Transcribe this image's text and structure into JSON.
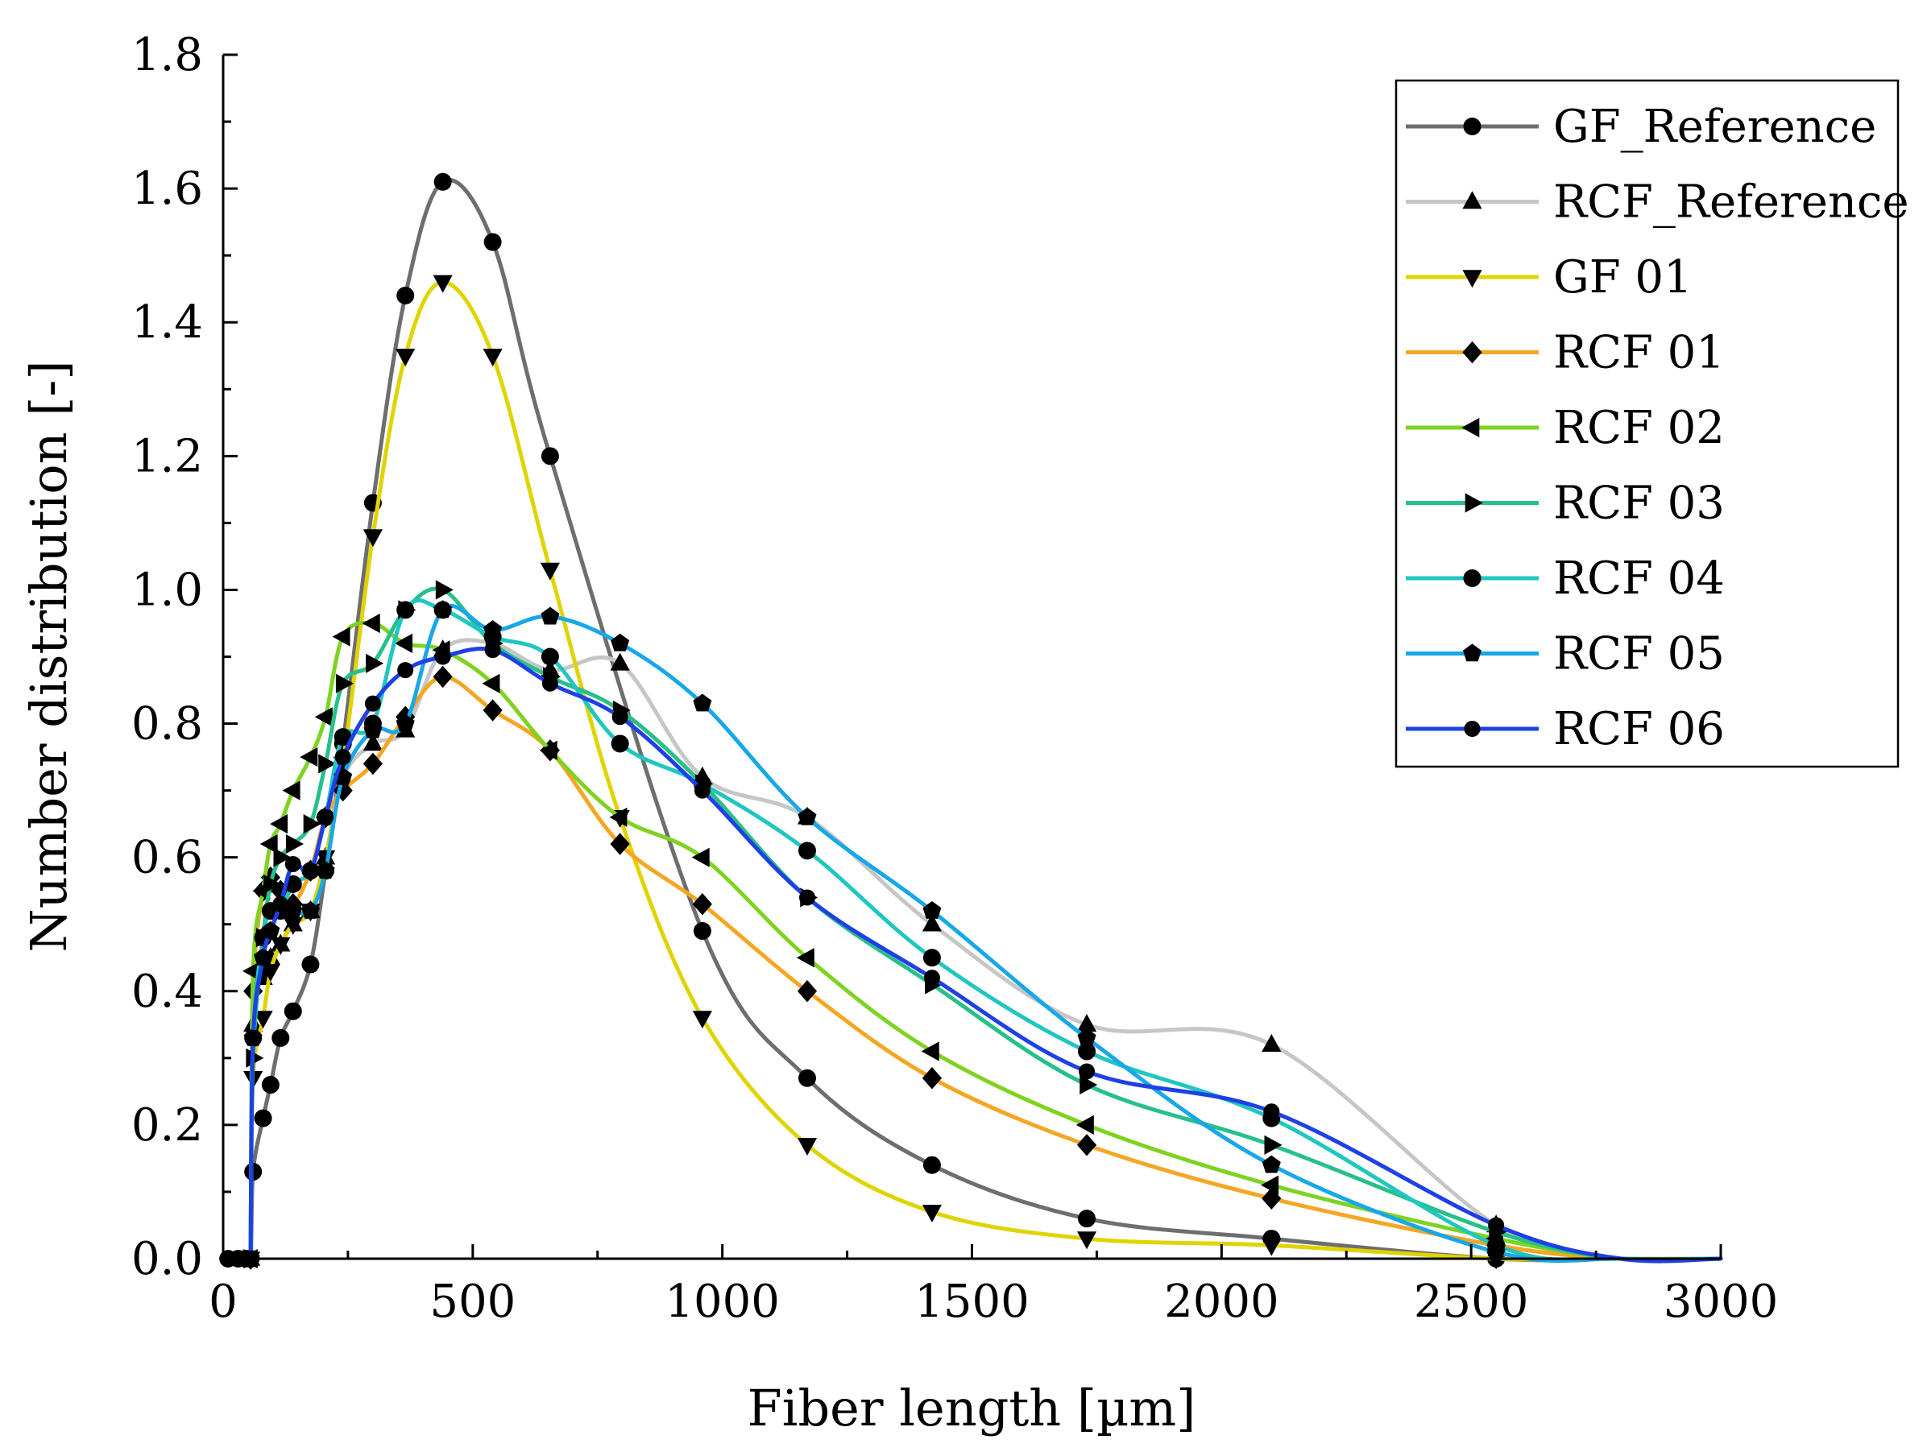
{
  "chart_data": {
    "type": "line",
    "title": "",
    "xlabel": "Fiber length  [µm]",
    "ylabel": "Number distribution [-]",
    "xlim": [
      0,
      3000
    ],
    "ylim": [
      0,
      1.8
    ],
    "xticks": [
      0,
      500,
      1000,
      1500,
      2000,
      2500,
      3000
    ],
    "yticks": [
      0.0,
      0.2,
      0.4,
      0.6,
      0.8,
      1.0,
      1.2,
      1.4,
      1.6,
      1.8
    ],
    "xtick_labels": [
      "0",
      "500",
      "1000",
      "1500",
      "2000",
      "2500",
      "3000"
    ],
    "ytick_labels": [
      "0.0",
      "0.2",
      "0.4",
      "0.6",
      "0.8",
      "1.0",
      "1.2",
      "1.4",
      "1.6",
      "1.8"
    ],
    "legend_position": "top-right",
    "series": [
      {
        "name": "GF_Reference",
        "color": "#6e6e6e",
        "marker": "circle",
        "points": [
          [
            10,
            0.0
          ],
          [
            30,
            0.0
          ],
          [
            45,
            0.0
          ],
          [
            55,
            0.0
          ],
          [
            60,
            0.13
          ],
          [
            80,
            0.21
          ],
          [
            95,
            0.26
          ],
          [
            115,
            0.33
          ],
          [
            140,
            0.37
          ],
          [
            175,
            0.44
          ],
          [
            205,
            0.58
          ],
          [
            240,
            0.77
          ],
          [
            300,
            1.13
          ],
          [
            365,
            1.44
          ],
          [
            440,
            1.61
          ],
          [
            540,
            1.52
          ],
          [
            655,
            1.2
          ],
          [
            960,
            0.49
          ],
          [
            1170,
            0.27
          ],
          [
            1420,
            0.14
          ],
          [
            1730,
            0.06
          ],
          [
            2100,
            0.03
          ],
          [
            2550,
            0.0
          ],
          [
            2800,
            0.0
          ],
          [
            3000,
            0.0
          ]
        ]
      },
      {
        "name": "RCF_Reference",
        "color": "#c6c6c6",
        "marker": "triangle-up",
        "points": [
          [
            55,
            0.0
          ],
          [
            60,
            0.35
          ],
          [
            80,
            0.42
          ],
          [
            95,
            0.45
          ],
          [
            115,
            0.47
          ],
          [
            140,
            0.5
          ],
          [
            175,
            0.52
          ],
          [
            205,
            0.6
          ],
          [
            240,
            0.72
          ],
          [
            300,
            0.77
          ],
          [
            365,
            0.79
          ],
          [
            440,
            0.91
          ],
          [
            540,
            0.92
          ],
          [
            655,
            0.88
          ],
          [
            795,
            0.89
          ],
          [
            960,
            0.72
          ],
          [
            1170,
            0.66
          ],
          [
            1420,
            0.5
          ],
          [
            1730,
            0.35
          ],
          [
            2100,
            0.32
          ],
          [
            2550,
            0.05
          ],
          [
            2800,
            0.0
          ],
          [
            3000,
            0.0
          ]
        ]
      },
      {
        "name": "GF 01",
        "color": "#e0d400",
        "marker": "triangle-down",
        "points": [
          [
            55,
            0.0
          ],
          [
            60,
            0.27
          ],
          [
            80,
            0.36
          ],
          [
            95,
            0.43
          ],
          [
            115,
            0.47
          ],
          [
            140,
            0.5
          ],
          [
            175,
            0.52
          ],
          [
            205,
            0.6
          ],
          [
            240,
            0.74
          ],
          [
            300,
            1.08
          ],
          [
            365,
            1.35
          ],
          [
            440,
            1.46
          ],
          [
            540,
            1.35
          ],
          [
            655,
            1.03
          ],
          [
            795,
            0.66
          ],
          [
            960,
            0.36
          ],
          [
            1170,
            0.17
          ],
          [
            1420,
            0.07
          ],
          [
            1730,
            0.03
          ],
          [
            2100,
            0.02
          ],
          [
            2550,
            0.0
          ],
          [
            2800,
            0.0
          ],
          [
            3000,
            0.0
          ]
        ]
      },
      {
        "name": "RCF 01",
        "color": "#f5a623",
        "marker": "diamond",
        "points": [
          [
            55,
            0.0
          ],
          [
            60,
            0.4
          ],
          [
            80,
            0.55
          ],
          [
            95,
            0.57
          ],
          [
            115,
            0.55
          ],
          [
            140,
            0.53
          ],
          [
            175,
            0.58
          ],
          [
            205,
            0.66
          ],
          [
            240,
            0.7
          ],
          [
            300,
            0.74
          ],
          [
            365,
            0.81
          ],
          [
            440,
            0.87
          ],
          [
            540,
            0.82
          ],
          [
            655,
            0.76
          ],
          [
            795,
            0.62
          ],
          [
            960,
            0.53
          ],
          [
            1170,
            0.4
          ],
          [
            1420,
            0.27
          ],
          [
            1730,
            0.17
          ],
          [
            2100,
            0.09
          ],
          [
            2550,
            0.02
          ],
          [
            2800,
            0.0
          ],
          [
            3000,
            0.0
          ]
        ]
      },
      {
        "name": "RCF 02",
        "color": "#7ed321",
        "marker": "triangle-left",
        "points": [
          [
            55,
            0.0
          ],
          [
            60,
            0.43
          ],
          [
            80,
            0.55
          ],
          [
            95,
            0.62
          ],
          [
            115,
            0.65
          ],
          [
            140,
            0.7
          ],
          [
            175,
            0.75
          ],
          [
            205,
            0.81
          ],
          [
            240,
            0.93
          ],
          [
            300,
            0.95
          ],
          [
            365,
            0.92
          ],
          [
            440,
            0.91
          ],
          [
            540,
            0.86
          ],
          [
            655,
            0.76
          ],
          [
            795,
            0.66
          ],
          [
            960,
            0.6
          ],
          [
            1170,
            0.45
          ],
          [
            1420,
            0.31
          ],
          [
            1730,
            0.2
          ],
          [
            2100,
            0.11
          ],
          [
            2550,
            0.03
          ],
          [
            2800,
            0.0
          ],
          [
            3000,
            0.0
          ]
        ]
      },
      {
        "name": "RCF 03",
        "color": "#27c08a",
        "marker": "triangle-right",
        "points": [
          [
            55,
            0.0
          ],
          [
            60,
            0.3
          ],
          [
            80,
            0.48
          ],
          [
            95,
            0.56
          ],
          [
            115,
            0.6
          ],
          [
            140,
            0.62
          ],
          [
            175,
            0.65
          ],
          [
            205,
            0.74
          ],
          [
            240,
            0.86
          ],
          [
            300,
            0.89
          ],
          [
            365,
            0.97
          ],
          [
            440,
            1.0
          ],
          [
            540,
            0.92
          ],
          [
            655,
            0.87
          ],
          [
            795,
            0.82
          ],
          [
            960,
            0.71
          ],
          [
            1170,
            0.54
          ],
          [
            1420,
            0.41
          ],
          [
            1730,
            0.26
          ],
          [
            2100,
            0.17
          ],
          [
            2550,
            0.04
          ],
          [
            2800,
            0.0
          ],
          [
            3000,
            0.0
          ]
        ]
      },
      {
        "name": "RCF 04",
        "color": "#20c6c0",
        "marker": "circle",
        "points": [
          [
            55,
            0.0
          ],
          [
            60,
            0.33
          ],
          [
            80,
            0.48
          ],
          [
            95,
            0.52
          ],
          [
            115,
            0.52
          ],
          [
            140,
            0.56
          ],
          [
            175,
            0.58
          ],
          [
            205,
            0.66
          ],
          [
            240,
            0.78
          ],
          [
            300,
            0.8
          ],
          [
            365,
            0.97
          ],
          [
            440,
            0.97
          ],
          [
            540,
            0.93
          ],
          [
            655,
            0.9
          ],
          [
            795,
            0.77
          ],
          [
            960,
            0.71
          ],
          [
            1170,
            0.61
          ],
          [
            1420,
            0.45
          ],
          [
            1730,
            0.31
          ],
          [
            2100,
            0.21
          ],
          [
            2550,
            0.02
          ],
          [
            2800,
            0.0
          ],
          [
            3000,
            0.0
          ]
        ]
      },
      {
        "name": "RCF 05",
        "color": "#18a7e8",
        "marker": "pentagon",
        "points": [
          [
            55,
            0.0
          ],
          [
            60,
            0.33
          ],
          [
            80,
            0.45
          ],
          [
            95,
            0.49
          ],
          [
            115,
            0.52
          ],
          [
            140,
            0.52
          ],
          [
            175,
            0.52
          ],
          [
            205,
            0.58
          ],
          [
            240,
            0.72
          ],
          [
            300,
            0.79
          ],
          [
            365,
            0.8
          ],
          [
            440,
            0.97
          ],
          [
            540,
            0.94
          ],
          [
            655,
            0.96
          ],
          [
            795,
            0.92
          ],
          [
            960,
            0.83
          ],
          [
            1170,
            0.66
          ],
          [
            1420,
            0.52
          ],
          [
            1730,
            0.33
          ],
          [
            2100,
            0.14
          ],
          [
            2550,
            0.01
          ],
          [
            2800,
            0.0
          ],
          [
            3000,
            0.0
          ]
        ]
      },
      {
        "name": "RCF 06",
        "color": "#1e40e6",
        "marker": "circle-small",
        "points": [
          [
            55,
            0.0
          ],
          [
            60,
            0.33
          ],
          [
            80,
            0.45
          ],
          [
            95,
            0.49
          ],
          [
            115,
            0.53
          ],
          [
            140,
            0.59
          ],
          [
            175,
            0.58
          ],
          [
            205,
            0.66
          ],
          [
            240,
            0.75
          ],
          [
            300,
            0.83
          ],
          [
            365,
            0.88
          ],
          [
            440,
            0.9
          ],
          [
            540,
            0.91
          ],
          [
            655,
            0.86
          ],
          [
            795,
            0.81
          ],
          [
            960,
            0.7
          ],
          [
            1170,
            0.54
          ],
          [
            1420,
            0.42
          ],
          [
            1730,
            0.28
          ],
          [
            2100,
            0.22
          ],
          [
            2550,
            0.05
          ],
          [
            2800,
            0.0
          ],
          [
            3000,
            0.0
          ]
        ]
      }
    ]
  }
}
